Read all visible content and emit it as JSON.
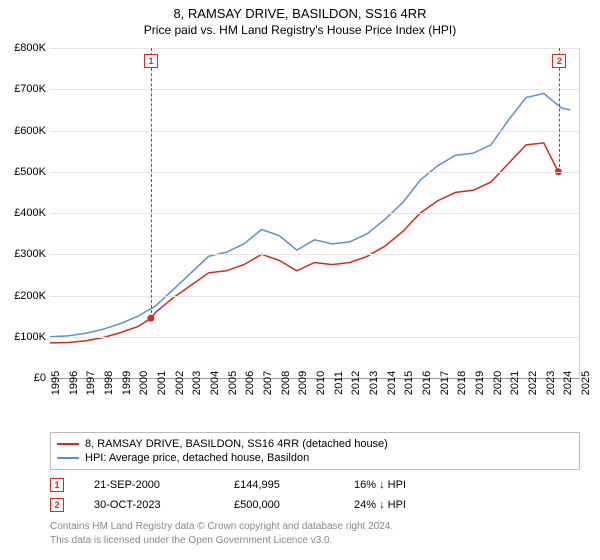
{
  "title": "8, RAMSAY DRIVE, BASILDON, SS16 4RR",
  "subtitle": "Price paid vs. HM Land Registry's House Price Index (HPI)",
  "chart": {
    "type": "line",
    "background_color": "#ffffff",
    "grid_color": "#e5e5e5",
    "axis_color": "#999999",
    "label_fontsize": 11,
    "xlim": [
      1995,
      2025
    ],
    "ylim": [
      0,
      800000
    ],
    "y_ticks": [
      {
        "v": 0,
        "label": "£0"
      },
      {
        "v": 100000,
        "label": "£100K"
      },
      {
        "v": 200000,
        "label": "£200K"
      },
      {
        "v": 300000,
        "label": "£300K"
      },
      {
        "v": 400000,
        "label": "£400K"
      },
      {
        "v": 500000,
        "label": "£500K"
      },
      {
        "v": 600000,
        "label": "£600K"
      },
      {
        "v": 700000,
        "label": "£700K"
      },
      {
        "v": 800000,
        "label": "£800K"
      }
    ],
    "x_ticks": [
      1995,
      1996,
      1997,
      1998,
      1999,
      2000,
      2001,
      2002,
      2003,
      2004,
      2005,
      2006,
      2007,
      2008,
      2009,
      2010,
      2011,
      2012,
      2013,
      2014,
      2015,
      2016,
      2017,
      2018,
      2019,
      2020,
      2021,
      2022,
      2023,
      2024,
      2025
    ],
    "series": [
      {
        "name": "property_price",
        "label": "8, RAMSAY DRIVE, BASILDON, SS16 4RR (detached house)",
        "color": "#d52b1e",
        "line_width": 1.5,
        "points": [
          [
            1995,
            85000
          ],
          [
            1996,
            86000
          ],
          [
            1997,
            90000
          ],
          [
            1998,
            98000
          ],
          [
            1999,
            110000
          ],
          [
            2000,
            125000
          ],
          [
            2000.72,
            144995
          ],
          [
            2001,
            160000
          ],
          [
            2002,
            195000
          ],
          [
            2003,
            225000
          ],
          [
            2004,
            255000
          ],
          [
            2005,
            260000
          ],
          [
            2006,
            275000
          ],
          [
            2007,
            300000
          ],
          [
            2008,
            285000
          ],
          [
            2009,
            260000
          ],
          [
            2010,
            280000
          ],
          [
            2011,
            275000
          ],
          [
            2012,
            280000
          ],
          [
            2013,
            295000
          ],
          [
            2014,
            320000
          ],
          [
            2015,
            355000
          ],
          [
            2016,
            400000
          ],
          [
            2017,
            430000
          ],
          [
            2018,
            450000
          ],
          [
            2019,
            455000
          ],
          [
            2020,
            475000
          ],
          [
            2021,
            520000
          ],
          [
            2022,
            565000
          ],
          [
            2023,
            570000
          ],
          [
            2023.83,
            500000
          ],
          [
            2024,
            495000
          ]
        ]
      },
      {
        "name": "hpi_basildon",
        "label": "HPI: Average price, detached house, Basildon",
        "color": "#5b8fd6",
        "line_width": 1.5,
        "points": [
          [
            1995,
            100000
          ],
          [
            1996,
            102000
          ],
          [
            1997,
            108000
          ],
          [
            1998,
            118000
          ],
          [
            1999,
            132000
          ],
          [
            2000,
            150000
          ],
          [
            2001,
            175000
          ],
          [
            2002,
            215000
          ],
          [
            2003,
            255000
          ],
          [
            2004,
            295000
          ],
          [
            2005,
            305000
          ],
          [
            2006,
            325000
          ],
          [
            2007,
            360000
          ],
          [
            2008,
            345000
          ],
          [
            2009,
            310000
          ],
          [
            2010,
            335000
          ],
          [
            2011,
            325000
          ],
          [
            2012,
            330000
          ],
          [
            2013,
            350000
          ],
          [
            2014,
            385000
          ],
          [
            2015,
            425000
          ],
          [
            2016,
            480000
          ],
          [
            2017,
            515000
          ],
          [
            2018,
            540000
          ],
          [
            2019,
            545000
          ],
          [
            2020,
            565000
          ],
          [
            2021,
            625000
          ],
          [
            2022,
            680000
          ],
          [
            2023,
            690000
          ],
          [
            2024,
            655000
          ],
          [
            2024.5,
            650000
          ]
        ]
      }
    ],
    "markers": [
      {
        "id": "1",
        "x": 2000.72,
        "y": 144995,
        "color": "#d52b1e",
        "dashed_to_top": true
      },
      {
        "id": "2",
        "x": 2023.83,
        "y": 500000,
        "color": "#d52b1e",
        "dashed_to_top": true
      }
    ]
  },
  "legend": {
    "entries": [
      {
        "color": "#d52b1e",
        "label": "8, RAMSAY DRIVE, BASILDON, SS16 4RR (detached house)"
      },
      {
        "color": "#5b8fd6",
        "label": "HPI: Average price, detached house, Basildon"
      }
    ]
  },
  "events": [
    {
      "id": "1",
      "color": "#d52b1e",
      "date": "21-SEP-2000",
      "price": "£144,995",
      "diff": "16% ↓ HPI"
    },
    {
      "id": "2",
      "color": "#d52b1e",
      "date": "30-OCT-2023",
      "price": "£500,000",
      "diff": "24% ↓ HPI"
    }
  ],
  "footer": {
    "line1": "Contains HM Land Registry data © Crown copyright and database right 2024.",
    "line2": "This data is licensed under the Open Government Licence v3.0."
  }
}
